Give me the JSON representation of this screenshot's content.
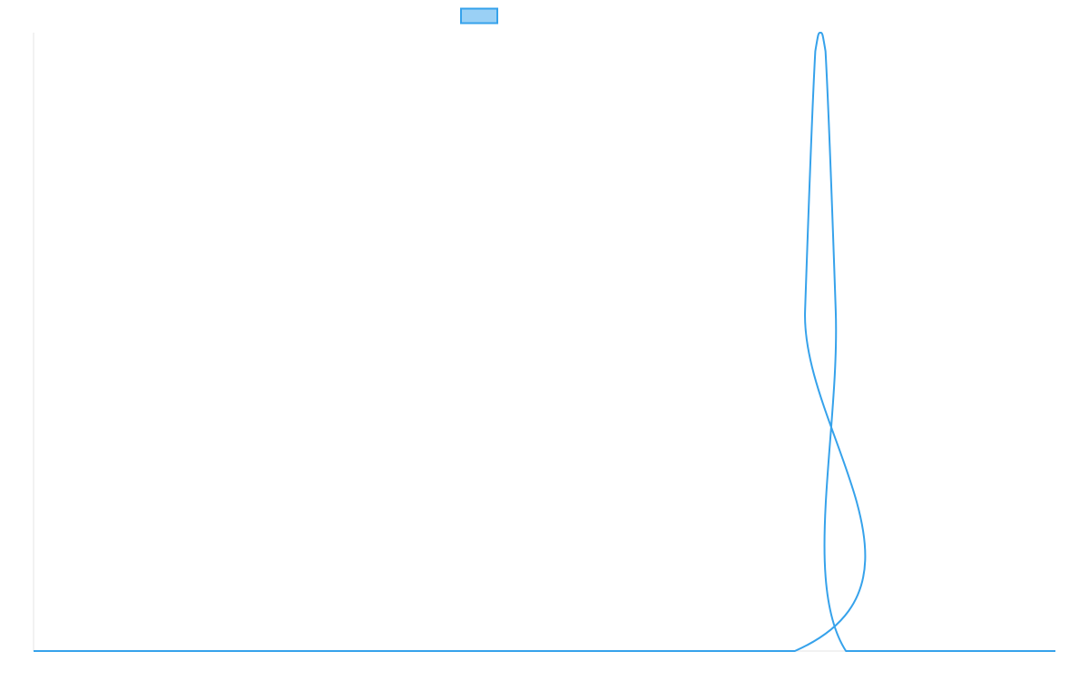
{
  "chart_data": {
    "type": "line",
    "title": "",
    "xlabel": "",
    "ylabel": "",
    "grid": false,
    "legend_position": "top-center",
    "colors": {
      "line": "#36a2eb",
      "legend_fill": "#9ad0f5",
      "axis": "#e5e5e5"
    },
    "x_range": [
      0,
      100
    ],
    "y_range": [
      0,
      1
    ],
    "series": [
      {
        "name": "",
        "x": [
          0,
          74.5,
          75.5,
          76.5,
          77.0,
          77.5,
          78.5,
          79.5,
          100
        ],
        "y": [
          0,
          0,
          0.55,
          0.97,
          1.0,
          0.97,
          0.55,
          0,
          0
        ]
      }
    ]
  }
}
